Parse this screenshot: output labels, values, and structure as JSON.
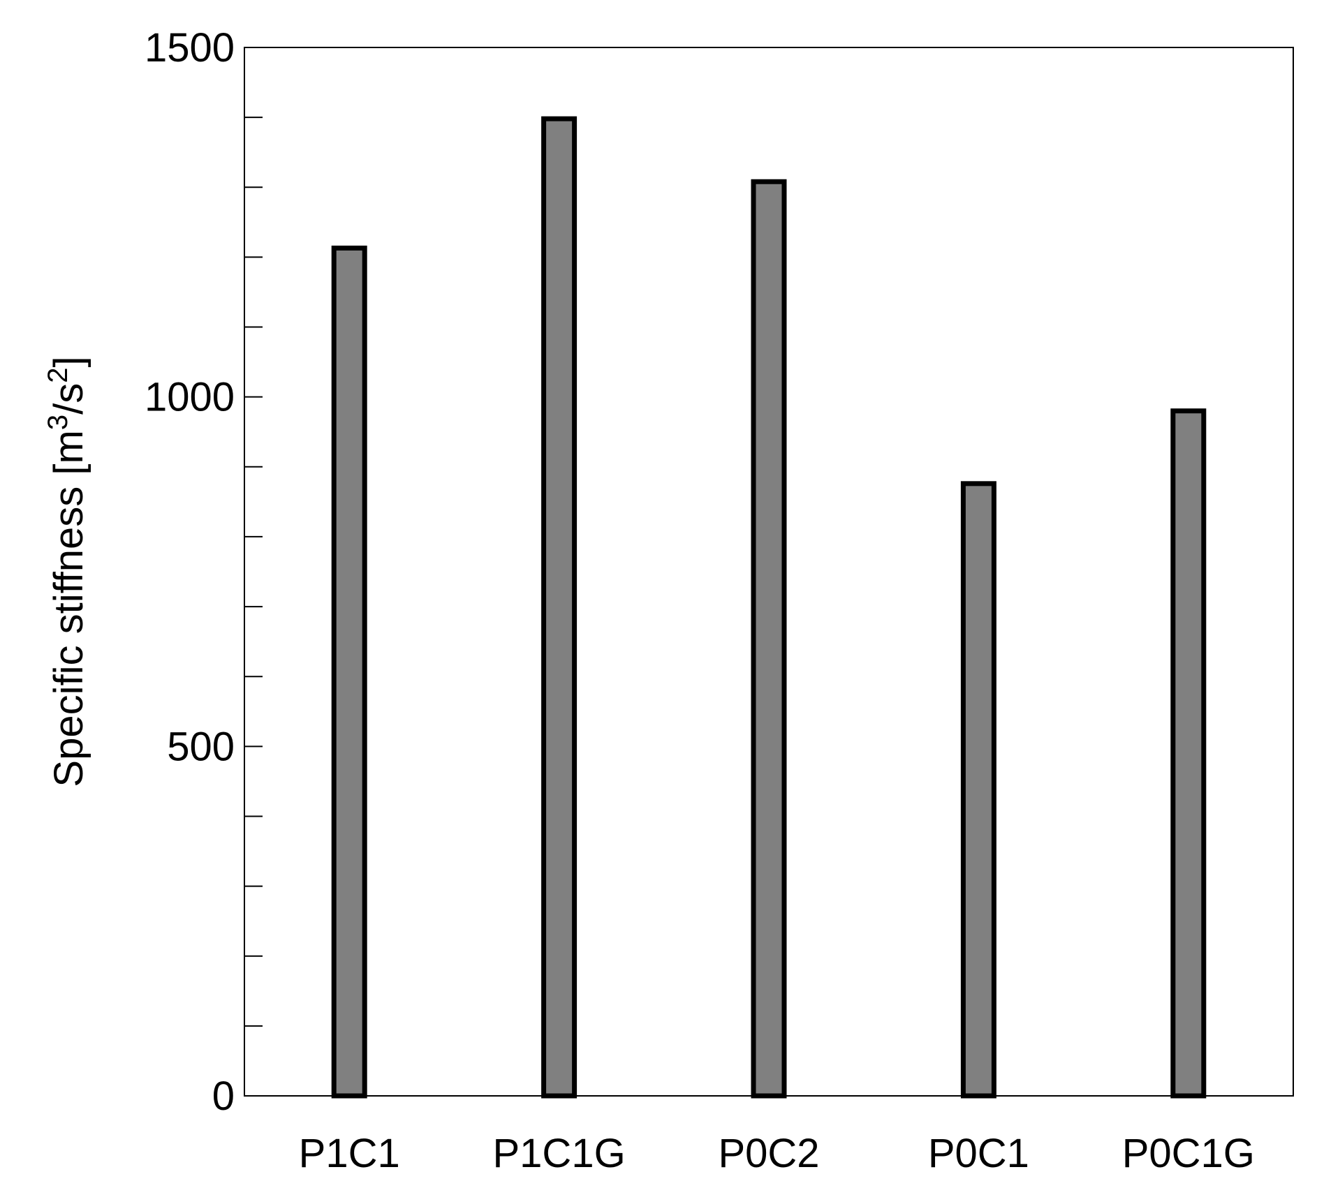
{
  "chart_data": {
    "type": "bar",
    "categories": [
      "P1C1",
      "P1C1G",
      "P0C2",
      "P0C1",
      "P0C1G"
    ],
    "values": [
      1213,
      1398,
      1308,
      876,
      980
    ],
    "ylabel": "Specific stiffness [m³/s²]",
    "ylabel_parts": {
      "prefix": "Specific stiffness [m",
      "exp1": "3",
      "mid": "/s",
      "exp2": "2",
      "suffix": "]"
    },
    "ylim": [
      0,
      1500
    ],
    "yticks_major": [
      0,
      500,
      1000,
      1500
    ],
    "ytick_labels": [
      "0",
      "500",
      "1000",
      "1500"
    ],
    "yticks_minor_step": 100,
    "grid": false,
    "legend": "none",
    "colors": {
      "bar_fill": "#808080",
      "bar_stroke": "#000000",
      "axis": "#000000"
    }
  }
}
